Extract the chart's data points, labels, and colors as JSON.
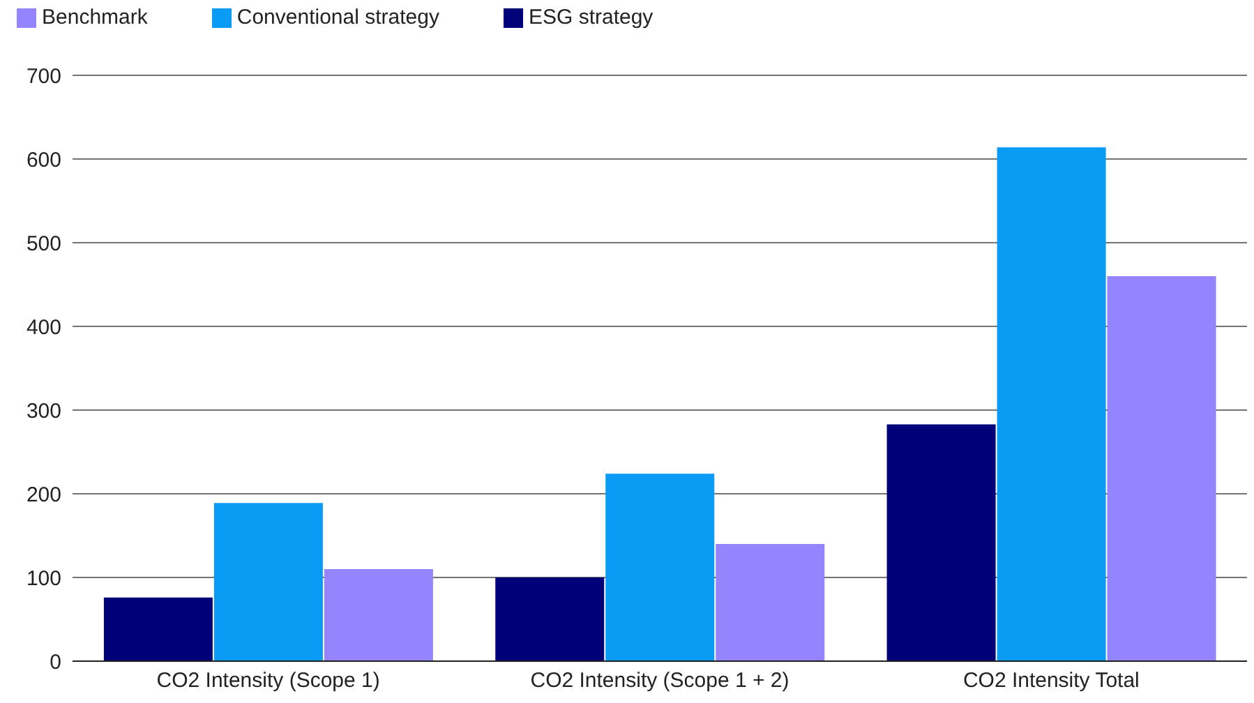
{
  "chart_data": {
    "type": "bar",
    "categories": [
      "CO2 Intensity (Scope 1)",
      "CO2 Intensity (Scope 1 + 2)",
      "CO2 Intensity Total"
    ],
    "series": [
      {
        "name": "ESG strategy",
        "color": "#000078",
        "values": [
          76,
          100,
          283
        ]
      },
      {
        "name": "Conventional strategy",
        "color": "#0a9bf5",
        "values": [
          189,
          224,
          614
        ]
      },
      {
        "name": "Benchmark",
        "color": "#9485ff",
        "values": [
          110,
          140,
          460
        ]
      }
    ],
    "ylim": [
      0,
      700
    ],
    "yticks": [
      0,
      100,
      200,
      300,
      400,
      500,
      600,
      700
    ],
    "grid": "y",
    "legend": "top left"
  }
}
